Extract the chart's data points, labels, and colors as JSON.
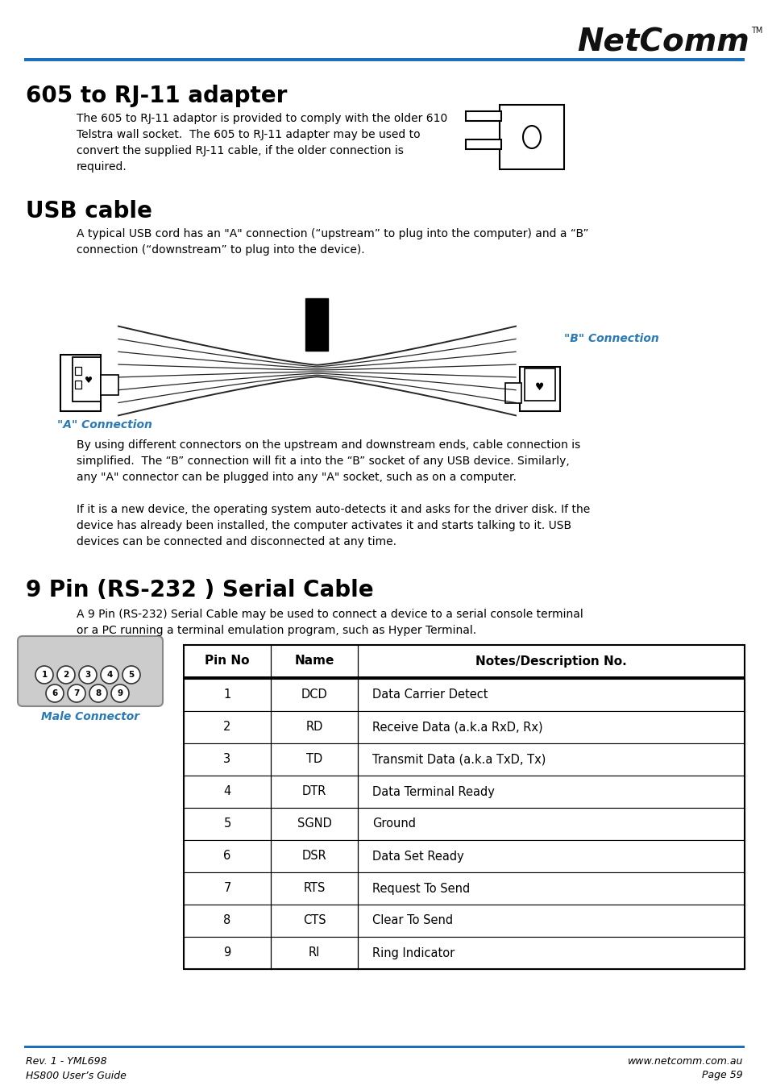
{
  "bg_color": "#ffffff",
  "blue_line_color": "#1e6fba",
  "text_color": "#000000",
  "italic_blue": "#2a7ab5",
  "title1": "605 to RJ-11 adapter",
  "title2": "USB cable",
  "title3": "9 Pin (RS-232 ) Serial Cable",
  "para1": "The 605 to RJ-11 adaptor is provided to comply with the older 610\nTelstra wall socket.  The 605 to RJ-11 adapter may be used to\nconvert the supplied RJ-11 cable, if the older connection is\nrequired.",
  "para2": "A typical USB cord has an \"A\" connection (“upstream” to plug into the computer) and a “B”\nconnection (“downstream” to plug into the device).",
  "para3": "By using different connectors on the upstream and downstream ends, cable connection is\nsimplified.  The “B” connection will fit a into the “B” socket of any USB device. Similarly,\nany \"A\" connector can be plugged into any \"A\" socket, such as on a computer.",
  "para4": "If it is a new device, the operating system auto-detects it and asks for the driver disk. If the\ndevice has already been installed, the computer activates it and starts talking to it. USB\ndevices can be connected and disconnected at any time.",
  "para5": "A 9 Pin (RS-232) Serial Cable may be used to connect a device to a serial console terminal\nor a PC running a terminal emulation program, such as Hyper Terminal.",
  "a_conn_label": "\"A\" Connection",
  "b_conn_label": "\"B\" Connection",
  "male_conn_label": "Male Connector",
  "footer_left1": "Rev. 1 - YML698",
  "footer_left2": "HS800 User’s Guide",
  "footer_right1": "www.netcomm.com.au",
  "footer_right2": "Page 59",
  "table_headers": [
    "Pin No",
    "Name",
    "Notes/Description No."
  ],
  "table_rows": [
    [
      "1",
      "DCD",
      "Data Carrier Detect"
    ],
    [
      "2",
      "RD",
      "Receive Data (a.k.a RxD, Rx)"
    ],
    [
      "3",
      "TD",
      "Transmit Data (a.k.a TxD, Tx)"
    ],
    [
      "4",
      "DTR",
      "Data Terminal Ready"
    ],
    [
      "5",
      "SGND",
      "Ground"
    ],
    [
      "6",
      "DSR",
      "Data Set Ready"
    ],
    [
      "7",
      "RTS",
      "Request To Send"
    ],
    [
      "8",
      "CTS",
      "Clear To Send"
    ],
    [
      "9",
      "RI",
      "Ring Indicator"
    ]
  ]
}
